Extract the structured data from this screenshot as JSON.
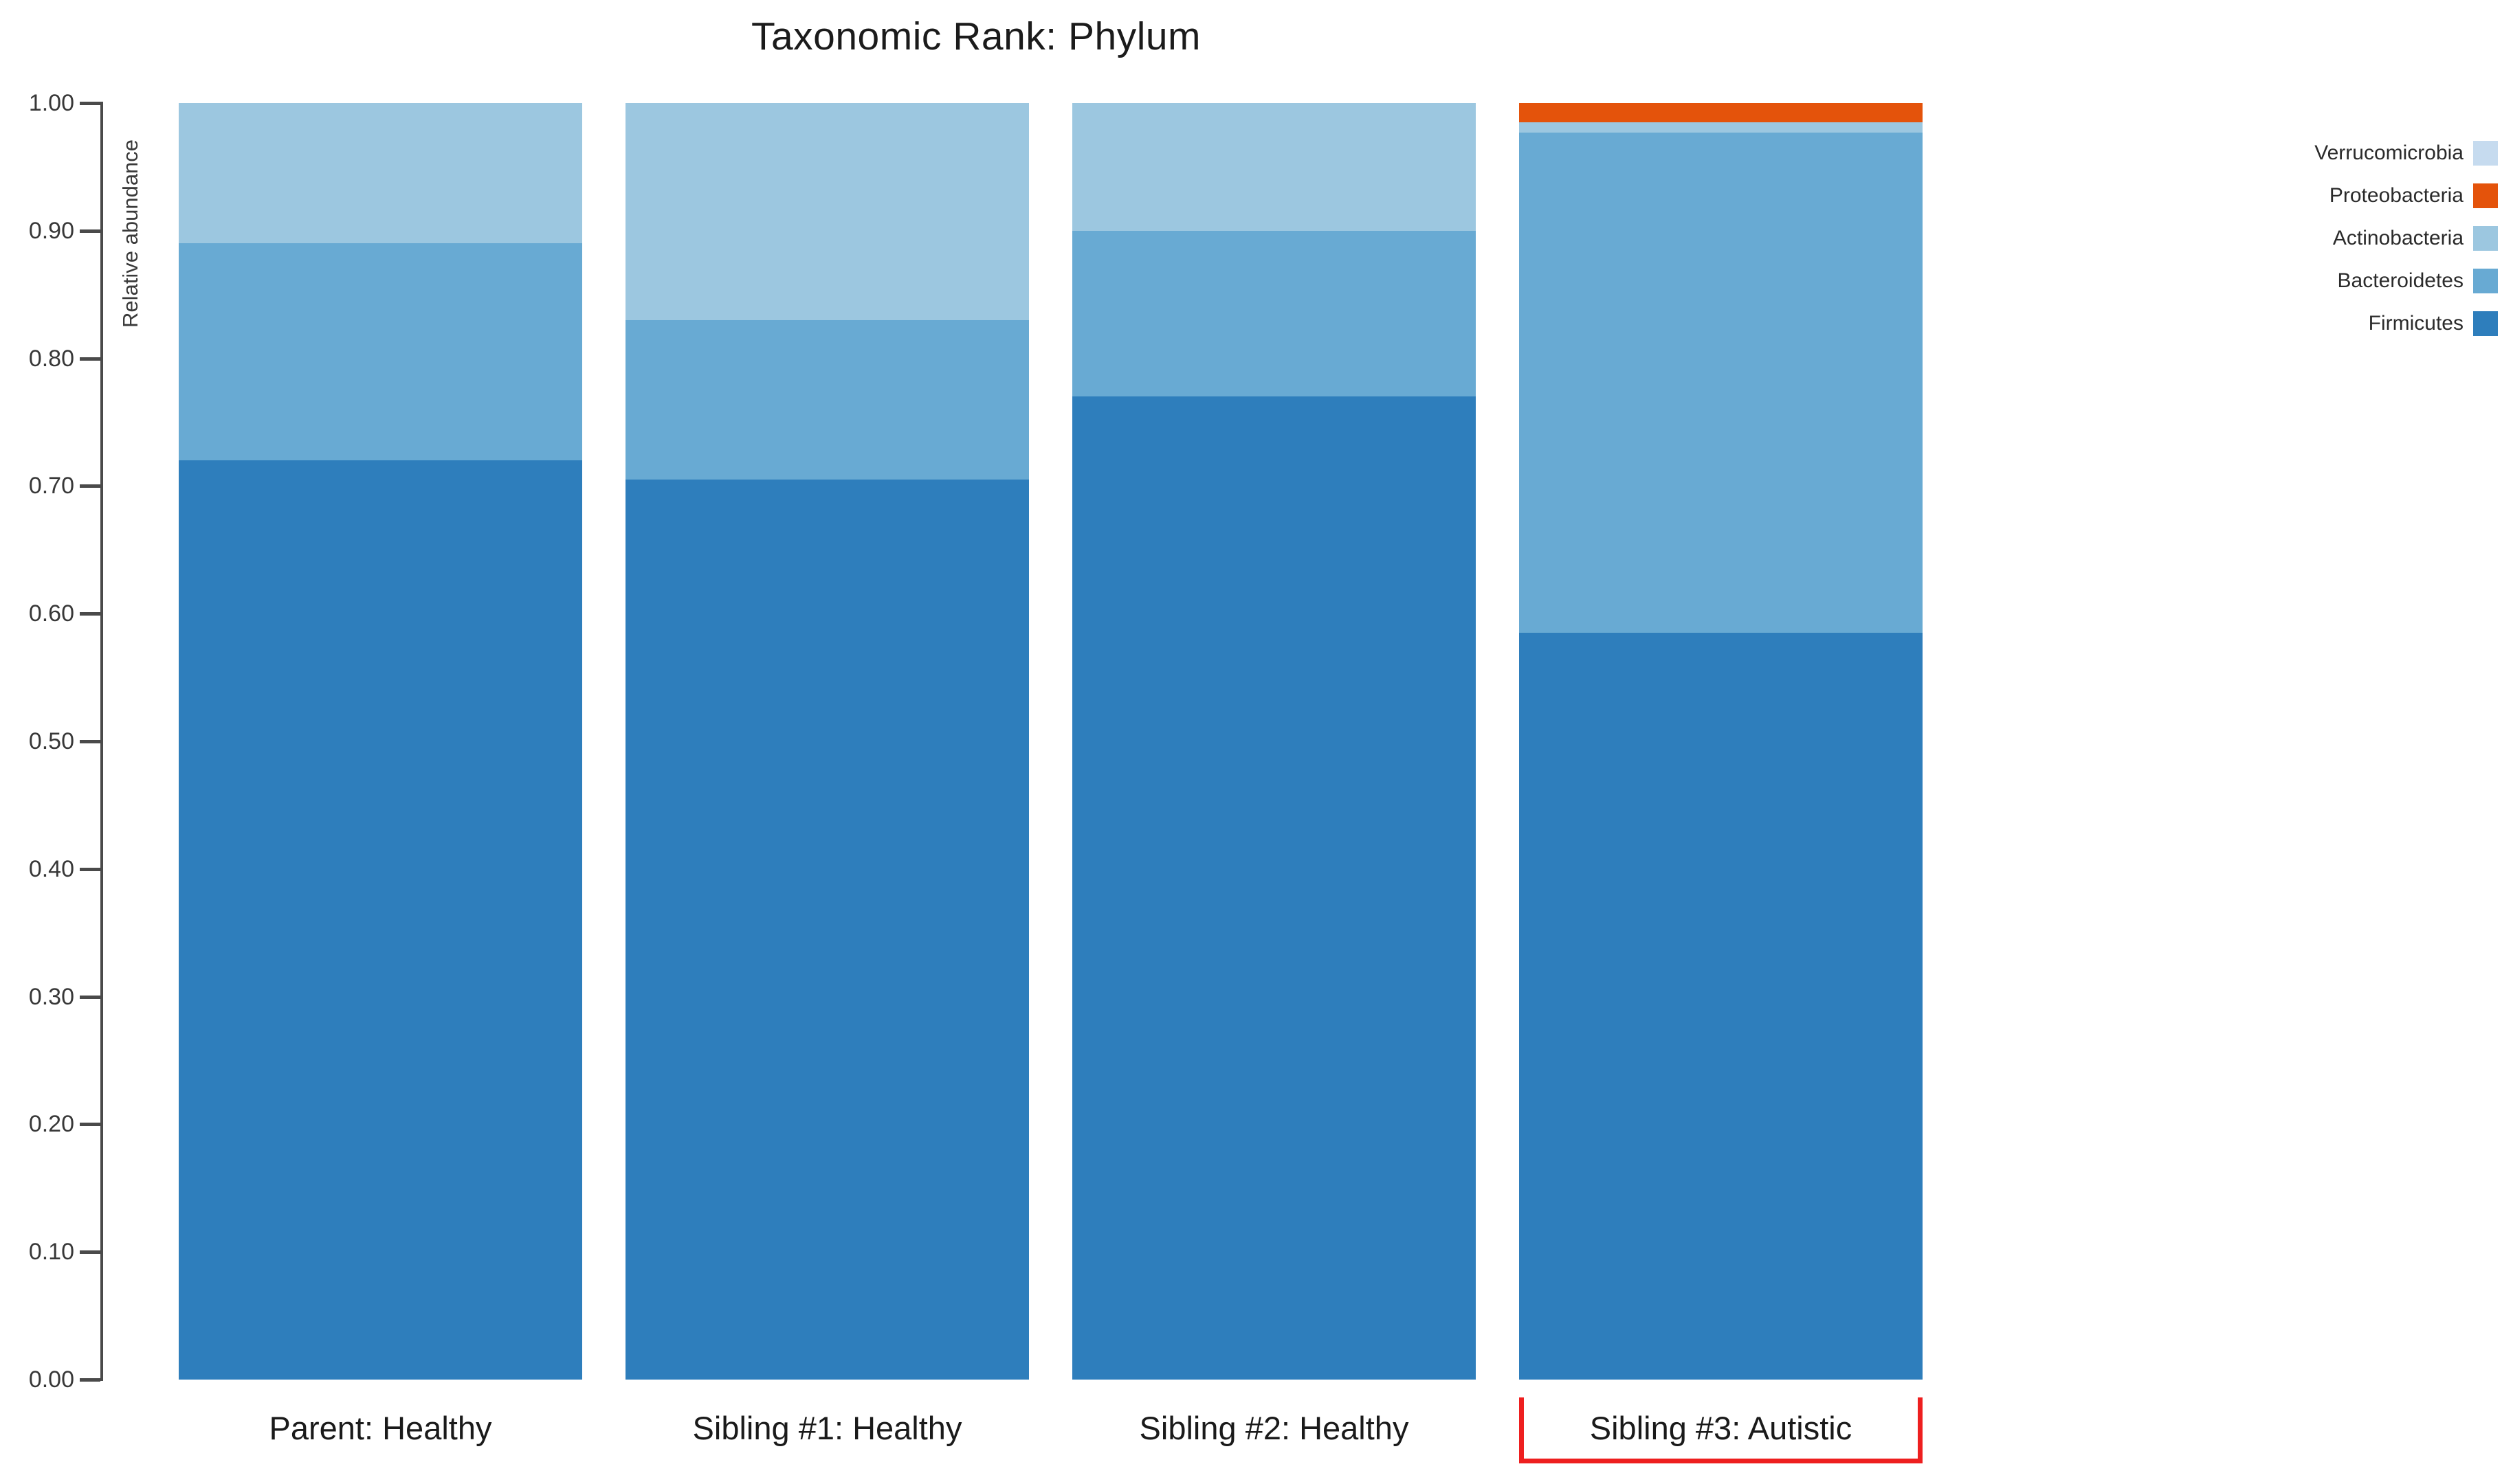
{
  "page": {
    "background": "#ffffff"
  },
  "chart_data": {
    "type": "bar",
    "stacked": true,
    "title": "Taxonomic Rank: Phylum",
    "ylabel": "Relative abundance",
    "xlabel": "",
    "categories": [
      "Parent: Healthy",
      "Sibling #1: Healthy",
      "Sibling #2: Healthy",
      "Sibling #3: Autistic"
    ],
    "series": [
      {
        "name": "Firmicutes",
        "color": "#2e7ebc",
        "values": [
          0.72,
          0.705,
          0.77,
          0.585
        ]
      },
      {
        "name": "Bacteroidetes",
        "color": "#68aad3",
        "values": [
          0.17,
          0.125,
          0.13,
          0.392
        ]
      },
      {
        "name": "Actinobacteria",
        "color": "#9cc7e0",
        "values": [
          0.11,
          0.17,
          0.1,
          0.008
        ]
      },
      {
        "name": "Proteobacteria",
        "color": "#e4530b",
        "values": [
          0.0,
          0.0,
          0.0,
          0.015
        ]
      },
      {
        "name": "Verrucomicrobia",
        "color": "#c6dbef",
        "values": [
          0.0,
          0.0,
          0.0,
          0.0
        ]
      }
    ],
    "legend": [
      {
        "label": "Verrucomicrobia",
        "color": "#c6dbef"
      },
      {
        "label": "Proteobacteria",
        "color": "#e4530b"
      },
      {
        "label": "Actinobacteria",
        "color": "#9cc7e0"
      },
      {
        "label": "Bacteroidetes",
        "color": "#68aad3"
      },
      {
        "label": "Firmicutes",
        "color": "#2e7ebc"
      }
    ],
    "legend_position": "right",
    "ylim": [
      0,
      1
    ],
    "ytick_labels": [
      "0.00",
      "0.10",
      "0.20",
      "0.30",
      "0.40",
      "0.50",
      "0.60",
      "0.70",
      "0.80",
      "0.90",
      "1.00"
    ],
    "grid": false,
    "highlight": {
      "category": "Sibling #3: Autistic",
      "category_index": 3,
      "style": "red-bracket",
      "color": "#ee1f1f"
    }
  }
}
